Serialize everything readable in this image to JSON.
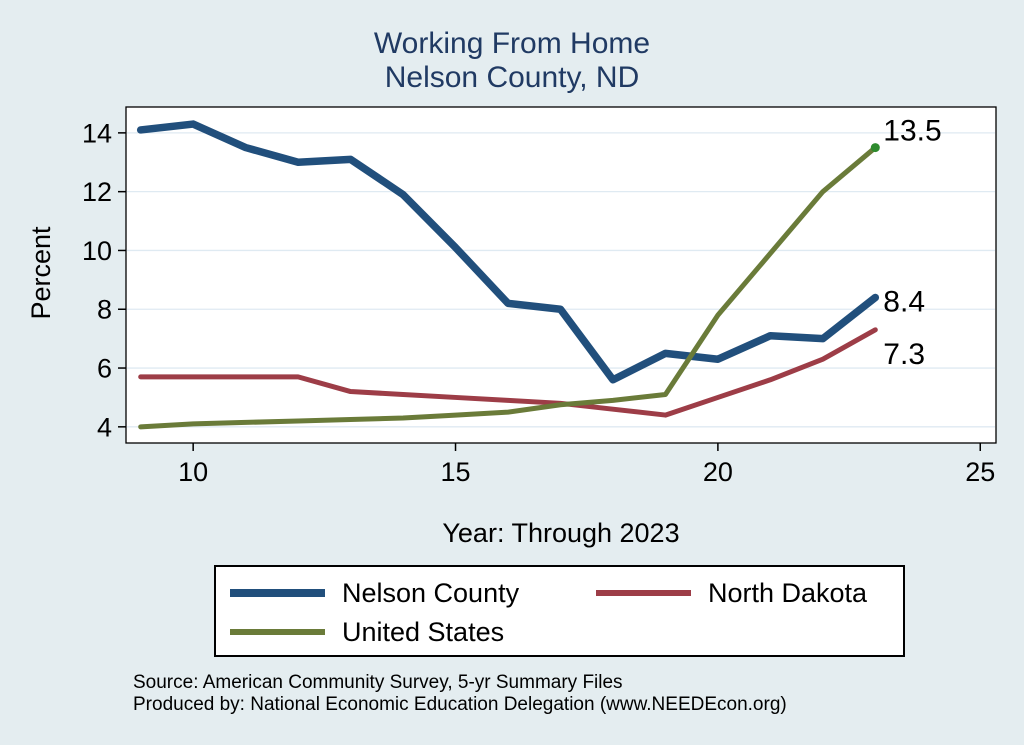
{
  "title": {
    "line1": "Working From Home",
    "line2": "Nelson County, ND"
  },
  "source": {
    "line1": "Source: American Community Survey, 5-yr Summary Files",
    "line2": "Produced by: National Economic Education Delegation (www.NEEDEcon.org)"
  },
  "chart_data": {
    "type": "line",
    "title": "Working From Home",
    "subtitle": "Nelson County, ND",
    "xlabel": "Year: Through 2023",
    "ylabel": "Percent",
    "x": [
      9,
      10,
      11,
      12,
      13,
      14,
      15,
      16,
      17,
      18,
      19,
      20,
      21,
      22,
      23
    ],
    "x_ticks": [
      10,
      15,
      20,
      25
    ],
    "y_ticks": [
      4,
      6,
      8,
      10,
      12,
      14
    ],
    "xlim": [
      8.72,
      25.3
    ],
    "ylim": [
      3.45,
      14.88
    ],
    "grid": "horizontal",
    "legend_position": "bottom",
    "colors": {
      "page_background": "#e4edf0",
      "plot_background": "#ffffff",
      "grid_line": "#dfeaf2",
      "axis_line": "#000000",
      "title_text": "#203a63"
    },
    "series": [
      {
        "name": "Nelson County",
        "color": "#214f7c",
        "line_width": 7.5,
        "end_label": "8.4",
        "values": [
          14.1,
          14.3,
          13.5,
          13.0,
          13.1,
          11.9,
          10.1,
          8.2,
          8.0,
          5.6,
          6.5,
          6.3,
          7.1,
          7.0,
          8.4
        ]
      },
      {
        "name": "North Dakota",
        "color": "#9d3d47",
        "line_width": 5,
        "end_label": "7.3",
        "values": [
          5.7,
          5.7,
          5.7,
          5.7,
          5.2,
          5.1,
          5.0,
          4.9,
          4.8,
          4.6,
          4.4,
          5.0,
          5.6,
          6.3,
          7.3
        ]
      },
      {
        "name": "United States",
        "color": "#6a7b39",
        "line_width": 5,
        "end_label": "13.5",
        "end_dot_color": "#2e8b2e",
        "values": [
          4.0,
          4.1,
          4.15,
          4.2,
          4.25,
          4.3,
          4.4,
          4.5,
          4.75,
          4.9,
          5.1,
          7.8,
          9.9,
          12.0,
          13.5
        ]
      }
    ]
  }
}
